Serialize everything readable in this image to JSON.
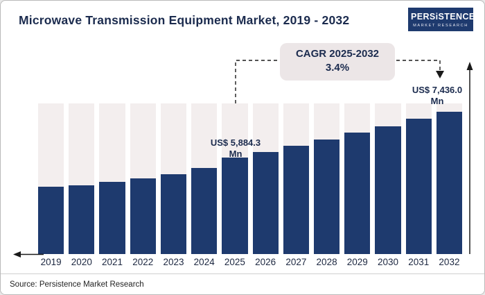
{
  "header": {
    "title": "Microwave Transmission Equipment Market, 2019 - 2032",
    "logo": {
      "line1": "PERSiSTENCE",
      "line2": "MARKET RESEARCH"
    }
  },
  "annotation": {
    "cagr_label": "CAGR 2025-2032",
    "cagr_value": "3.4%"
  },
  "callouts": {
    "y2025": "US$ 5,884.3 Mn",
    "y2032": "US$ 7,436.0 Mn"
  },
  "footer": {
    "source": "Source: Persistence Market Research"
  },
  "colors": {
    "bar": "#1e3a6e",
    "bar_bg": "#f3eeee",
    "pill_bg": "#ece6e7",
    "text_navy": "#1b2b4e",
    "line": "#1a1a1a"
  },
  "chart_data": {
    "type": "bar",
    "title": "Microwave Transmission Equipment Market, 2019 - 2032",
    "unit": "US$ Mn",
    "categories": [
      "2019",
      "2020",
      "2021",
      "2022",
      "2023",
      "2024",
      "2025",
      "2026",
      "2027",
      "2028",
      "2029",
      "2030",
      "2031",
      "2032"
    ],
    "values": [
      4905,
      4960,
      5065,
      5190,
      5330,
      5540,
      5884.3,
      6084,
      6291,
      6505,
      6726,
      6955,
      7191,
      7436.0
    ],
    "labeled_points": [
      {
        "category": "2025",
        "value": 5884.3,
        "label": "US$ 5,884.3 Mn"
      },
      {
        "category": "2032",
        "value": 7436.0,
        "label": "US$ 7,436.0 Mn"
      }
    ],
    "cagr": {
      "period": "2025-2032",
      "percent": 3.4
    },
    "xlabel": "",
    "ylabel": "",
    "legend": "none",
    "grid": false
  }
}
